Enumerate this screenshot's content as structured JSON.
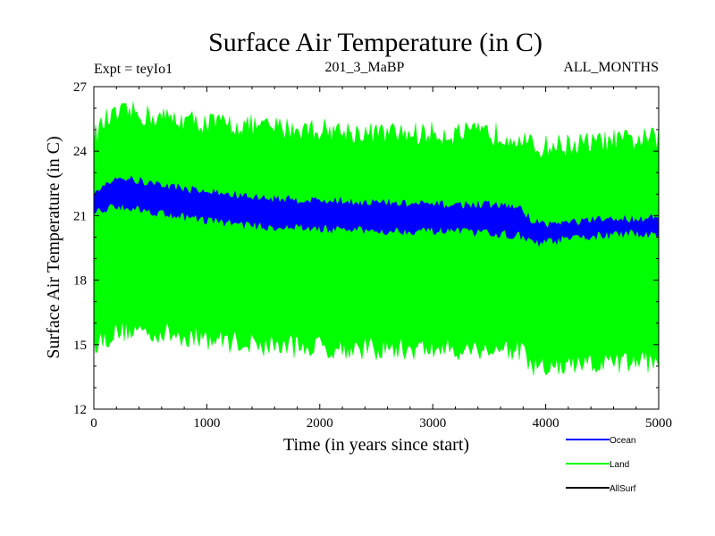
{
  "chart_data": {
    "type": "area",
    "title": "Surface Air Temperature (in C)",
    "subtitle_left": "Expt = teyIo1",
    "subtitle_center": "201_3_MaBP",
    "subtitle_right": "ALL_MONTHS",
    "xlabel": "Time (in years since start)",
    "ylabel": "Surface Air Temperature (in C)",
    "xlim": [
      0,
      5000
    ],
    "ylim": [
      12,
      27
    ],
    "x_ticks": [
      0,
      1000,
      2000,
      3000,
      4000,
      5000
    ],
    "y_ticks": [
      12,
      15,
      18,
      21,
      24,
      27
    ],
    "x_tick_labels": [
      "0",
      "1000",
      "2000",
      "3000",
      "4000",
      "5000"
    ],
    "y_tick_labels": [
      "12",
      "15",
      "18",
      "21",
      "24",
      "27"
    ],
    "legend_position": "bottom-right",
    "series": [
      {
        "name": "Land",
        "color": "#00ff00",
        "x": [
          0,
          100,
          200,
          300,
          500,
          1000,
          1500,
          2000,
          2500,
          3000,
          3500,
          3750,
          3900,
          4000,
          4500,
          5000
        ],
        "upper": [
          24.6,
          25.4,
          25.6,
          25.8,
          25.6,
          25.3,
          25.1,
          25.0,
          24.8,
          24.8,
          24.8,
          24.7,
          24.1,
          24.2,
          24.4,
          24.6
        ],
        "lower": [
          15.1,
          15.3,
          15.6,
          15.7,
          15.6,
          15.3,
          15.0,
          14.9,
          14.8,
          14.8,
          14.8,
          14.8,
          13.9,
          13.9,
          14.1,
          14.3
        ]
      },
      {
        "name": "Ocean",
        "color": "#0000ff",
        "x": [
          0,
          100,
          200,
          300,
          500,
          1000,
          1500,
          2000,
          2500,
          3000,
          3500,
          3750,
          3900,
          4000,
          4500,
          5000
        ],
        "upper": [
          21.9,
          22.5,
          22.8,
          22.7,
          22.5,
          22.1,
          21.8,
          21.7,
          21.6,
          21.5,
          21.5,
          21.4,
          20.7,
          20.6,
          20.8,
          20.9
        ],
        "lower": [
          21.1,
          21.3,
          21.5,
          21.4,
          21.2,
          20.8,
          20.5,
          20.4,
          20.3,
          20.3,
          20.2,
          20.1,
          19.7,
          19.8,
          20.1,
          20.2
        ]
      },
      {
        "name": "AllSurf",
        "color": "#000000"
      }
    ]
  }
}
